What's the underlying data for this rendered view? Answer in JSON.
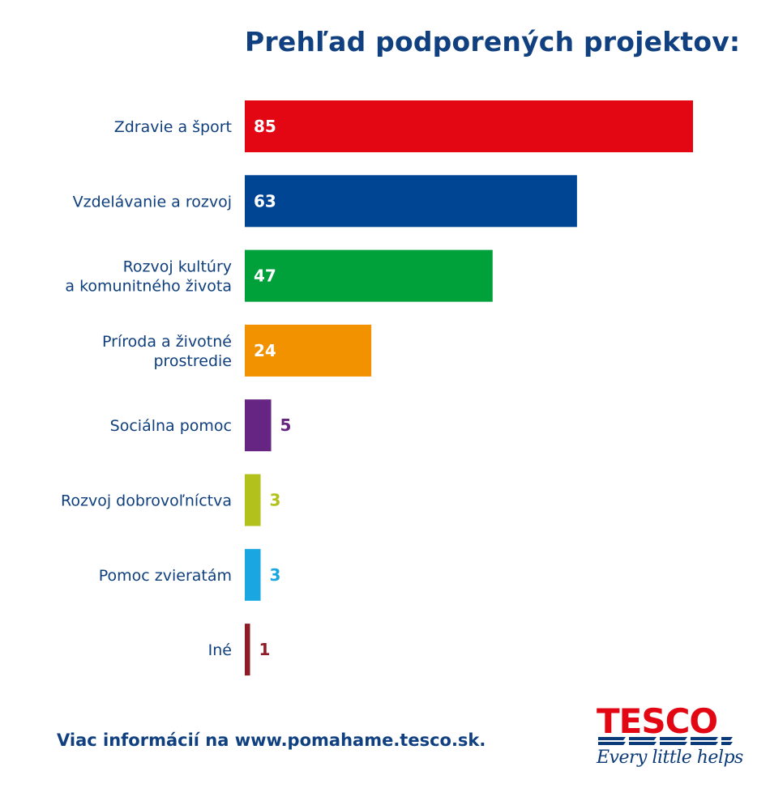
{
  "title": "Prehľad podporených projektov:",
  "footer_text": "Viac informácií na www.pomahame.tesco.sk.",
  "logo": {
    "word": "TESCO",
    "tagline": "Every little helps",
    "icon": "tesco-stripes-logo"
  },
  "chart_data": {
    "type": "bar",
    "orientation": "horizontal",
    "title": "Prehľad podporených projektov:",
    "xlabel": "",
    "ylabel": "",
    "xlim": [
      0,
      85
    ],
    "grid": false,
    "categories": [
      [
        "Zdravie a šport"
      ],
      [
        "Vzdelávanie a rozvoj"
      ],
      [
        "Rozvoj kultúry",
        "a komunitného života"
      ],
      [
        "Príroda a životné",
        "prostredie"
      ],
      [
        "Sociálna pomoc"
      ],
      [
        "Rozvoj dobrovoľníctva"
      ],
      [
        "Pomoc zvieratám"
      ],
      [
        "Iné"
      ]
    ],
    "values": [
      85,
      63,
      47,
      24,
      5,
      3,
      3,
      1
    ],
    "colors": [
      "#e30613",
      "#004494",
      "#00a03a",
      "#f39200",
      "#662483",
      "#b2c11b",
      "#1aa7e1",
      "#8e1c26"
    ]
  }
}
